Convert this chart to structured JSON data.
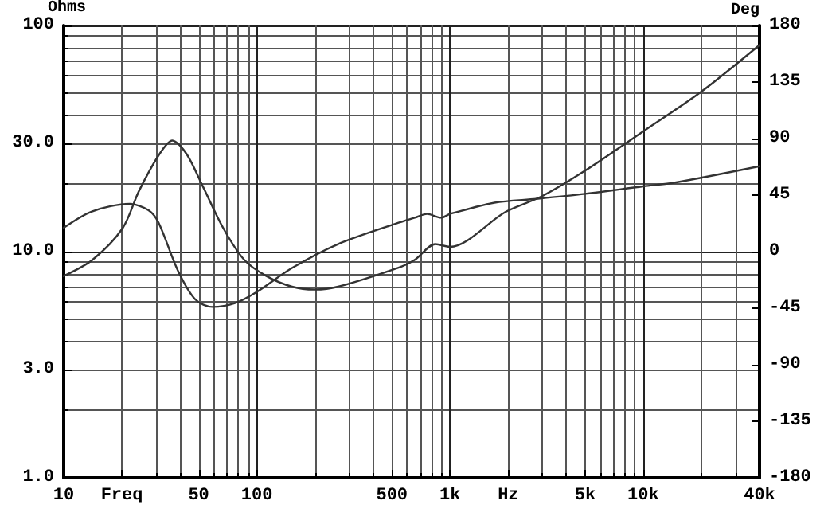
{
  "chart_data": {
    "type": "line",
    "ylabel": "Ohms",
    "y2label": "Deg",
    "log": "xy",
    "grid": true,
    "marker": "none",
    "line_style": "solid",
    "xlim": [
      10,
      40000
    ],
    "xticks": [
      10,
      {
        "value": 20,
        "label": "Freq"
      },
      50,
      100,
      500,
      {
        "value": 1000,
        "label": "1k"
      },
      {
        "value": 2000,
        "label": "Hz"
      },
      {
        "value": 5000,
        "label": "5k"
      },
      {
        "value": 10000,
        "label": "10k"
      },
      {
        "value": 40000,
        "label": "40k"
      }
    ],
    "ylim": [
      1,
      100
    ],
    "yticks": [
      {
        "value": 1,
        "label": "1.0"
      },
      {
        "value": 3,
        "label": "3.0"
      },
      {
        "value": 10,
        "label": "10.0"
      },
      {
        "value": 30,
        "label": "30.0"
      },
      100
    ],
    "y2lim": [
      -180,
      180
    ],
    "y2ticks": [
      -180,
      -135,
      -90,
      -45,
      0,
      45,
      90,
      135,
      180
    ],
    "series": [
      {
        "color": "#333333",
        "x": [
          10,
          14.1,
          20.2,
          24.5,
          31.3,
          36.5,
          43.3,
          52.4,
          67,
          86,
          112,
          152,
          199,
          263,
          541,
          657,
          840,
          1000,
          1940,
          3000,
          5000,
          10000,
          20000,
          40000
        ],
        "values": [
          7.8,
          9.2,
          12.7,
          18.5,
          27,
          31,
          27,
          19.5,
          12.7,
          9.2,
          7.8,
          7.0,
          6.8,
          7.0,
          8.5,
          9.2,
          10.8,
          10.5,
          15,
          17.6,
          22.8,
          34,
          51,
          82
        ]
      },
      {
        "color": "#333333",
        "axis": "y2",
        "x": [
          10,
          14,
          22,
          27.5,
          31,
          39,
          48,
          59,
          77,
          100,
          152,
          263,
          541,
          657,
          760,
          900,
          1000,
          1700,
          2800,
          5000,
          10000,
          14600,
          40000
        ],
        "values": [
          19,
          32,
          38,
          33,
          23,
          -15,
          -38,
          -44,
          -41,
          -32,
          -13,
          6,
          23,
          27,
          30,
          27,
          30,
          39,
          42,
          46,
          52,
          55,
          68
        ]
      }
    ]
  }
}
